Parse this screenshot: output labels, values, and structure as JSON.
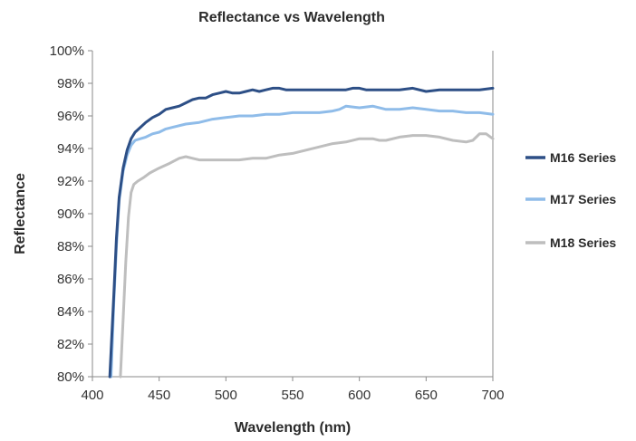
{
  "chart_data": {
    "type": "line",
    "title": "Reflectance vs Wavelength",
    "xlabel": "Wavelength (nm)",
    "ylabel": "Reflectance",
    "xlim": [
      400,
      700
    ],
    "ylim": [
      80,
      100
    ],
    "x_ticks": [
      "400",
      "450",
      "500",
      "550",
      "600",
      "650",
      "700"
    ],
    "y_ticks": [
      "80%",
      "82%",
      "84%",
      "86%",
      "88%",
      "90%",
      "92%",
      "94%",
      "96%",
      "98%",
      "100%"
    ],
    "grid": false,
    "legend_position": "right",
    "series": [
      {
        "name": "M16 Series",
        "color": "#2d4f86",
        "x": [
          413,
          416,
          418,
          420,
          423,
          426,
          429,
          432,
          436,
          440,
          445,
          450,
          455,
          460,
          465,
          470,
          475,
          480,
          485,
          490,
          495,
          500,
          505,
          510,
          515,
          520,
          525,
          530,
          535,
          540,
          545,
          550,
          555,
          560,
          570,
          580,
          590,
          595,
          600,
          605,
          610,
          620,
          630,
          640,
          650,
          660,
          670,
          680,
          690,
          700
        ],
        "values": [
          80.0,
          85.0,
          88.5,
          91.0,
          92.8,
          93.9,
          94.6,
          95.0,
          95.3,
          95.6,
          95.9,
          96.1,
          96.4,
          96.5,
          96.6,
          96.8,
          97.0,
          97.1,
          97.1,
          97.3,
          97.4,
          97.5,
          97.4,
          97.4,
          97.5,
          97.6,
          97.5,
          97.6,
          97.7,
          97.7,
          97.6,
          97.6,
          97.6,
          97.6,
          97.6,
          97.6,
          97.6,
          97.7,
          97.7,
          97.6,
          97.6,
          97.6,
          97.6,
          97.7,
          97.5,
          97.6,
          97.6,
          97.6,
          97.6,
          97.7
        ]
      },
      {
        "name": "M17 Series",
        "color": "#8fbce9",
        "x": [
          414,
          416,
          418,
          420,
          423,
          426,
          429,
          432,
          436,
          440,
          445,
          450,
          455,
          460,
          470,
          480,
          490,
          500,
          510,
          520,
          530,
          540,
          550,
          560,
          570,
          580,
          585,
          590,
          600,
          610,
          620,
          630,
          640,
          650,
          660,
          670,
          680,
          690,
          700
        ],
        "values": [
          80.0,
          84.5,
          88.0,
          90.8,
          92.6,
          93.6,
          94.2,
          94.5,
          94.6,
          94.7,
          94.9,
          95.0,
          95.2,
          95.3,
          95.5,
          95.6,
          95.8,
          95.9,
          96.0,
          96.0,
          96.1,
          96.1,
          96.2,
          96.2,
          96.2,
          96.3,
          96.4,
          96.6,
          96.5,
          96.6,
          96.4,
          96.4,
          96.5,
          96.4,
          96.3,
          96.3,
          96.2,
          96.2,
          96.1
        ]
      },
      {
        "name": "M18 Series",
        "color": "#bebebe",
        "x": [
          421,
          423,
          425,
          427,
          429,
          431,
          434,
          438,
          443,
          450,
          458,
          465,
          470,
          475,
          480,
          490,
          500,
          505,
          510,
          520,
          530,
          540,
          550,
          560,
          570,
          580,
          590,
          600,
          610,
          615,
          620,
          630,
          640,
          650,
          660,
          670,
          680,
          685,
          690,
          695,
          700
        ],
        "values": [
          80.0,
          83.5,
          87.0,
          89.8,
          91.3,
          91.8,
          92.0,
          92.2,
          92.5,
          92.8,
          93.1,
          93.4,
          93.5,
          93.4,
          93.3,
          93.3,
          93.3,
          93.3,
          93.3,
          93.4,
          93.4,
          93.6,
          93.7,
          93.9,
          94.1,
          94.3,
          94.4,
          94.6,
          94.6,
          94.5,
          94.5,
          94.7,
          94.8,
          94.8,
          94.7,
          94.5,
          94.4,
          94.5,
          94.9,
          94.9,
          94.6
        ]
      }
    ]
  }
}
